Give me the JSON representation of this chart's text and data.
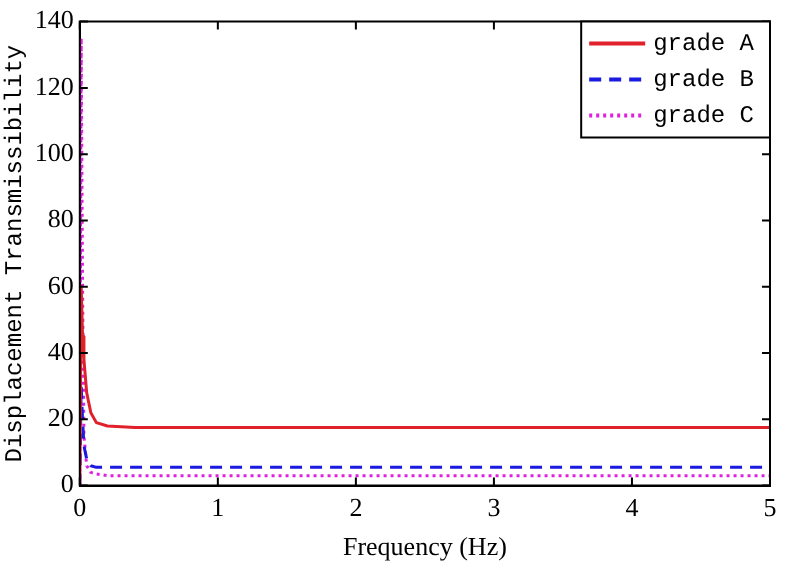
{
  "chart_data": {
    "type": "line",
    "xlabel": "Frequency (Hz)",
    "ylabel": "Displacement Transmissibility",
    "x": [
      0,
      0.01,
      0.02,
      0.03,
      0.05,
      0.08,
      0.12,
      0.2,
      0.4,
      1,
      2,
      3,
      4,
      5
    ],
    "series": [
      {
        "name": "grade A",
        "color": "#e0202a",
        "line_style": "solid",
        "values": [
          0,
          60,
          45,
          38,
          28,
          22,
          19,
          18,
          17.5,
          17.5,
          17.5,
          17.5,
          17.5,
          17.5
        ]
      },
      {
        "name": "grade B",
        "color": "#1a1ae0",
        "line_style": "dashed",
        "values": [
          0,
          30,
          20,
          12,
          8,
          6,
          5.5,
          5.5,
          5.5,
          5.5,
          5.5,
          5.5,
          5.5,
          5.5
        ]
      },
      {
        "name": "grade C",
        "color": "#e020e0",
        "line_style": "dotted",
        "values": [
          0,
          135,
          60,
          15,
          6,
          4,
          3.5,
          3,
          3,
          3,
          3,
          3,
          3,
          3
        ]
      }
    ],
    "xlim": [
      0,
      5
    ],
    "xticks": [
      0,
      1,
      2,
      3,
      4,
      5
    ],
    "ylim": [
      0,
      140
    ],
    "yticks": [
      0,
      20,
      40,
      60,
      80,
      100,
      120,
      140
    ],
    "grid": false,
    "legend": "top right",
    "marker": "none"
  }
}
